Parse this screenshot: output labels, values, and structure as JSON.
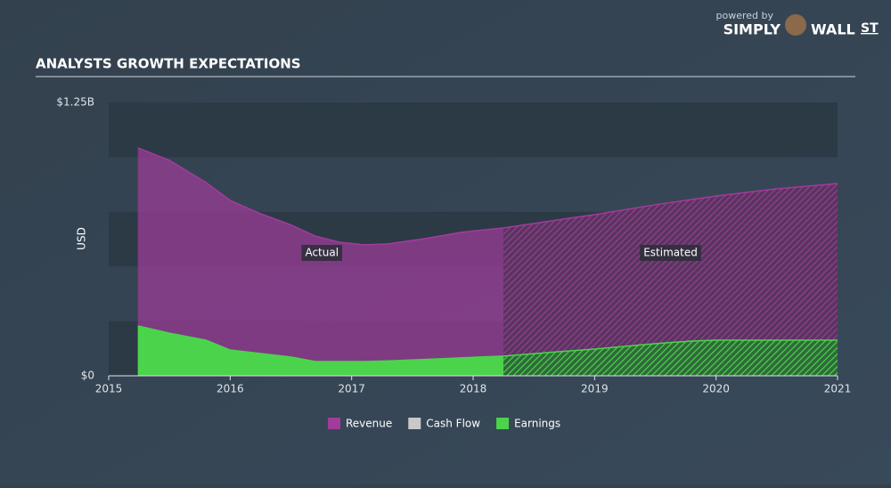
{
  "brand": {
    "powered_by": "powered by",
    "simply": "SIMPLY",
    "wall": "WALL",
    "st": "ST"
  },
  "chart_data": {
    "type": "area",
    "title": "ANALYSTS GROWTH EXPECTATIONS",
    "y_label": "USD",
    "x": [
      2015.24,
      2015.5,
      2015.8,
      2016.0,
      2016.25,
      2016.5,
      2016.7,
      2016.9,
      2017.1,
      2017.3,
      2017.6,
      2017.9,
      2018.1,
      2018.25,
      2018.7,
      2019.0,
      2019.5,
      2019.8,
      2020.0,
      2020.5,
      2021.0
    ],
    "series": [
      {
        "name": "Revenue",
        "color": "#a13c9b",
        "values": [
          1.042,
          0.985,
          0.884,
          0.802,
          0.741,
          0.69,
          0.639,
          0.611,
          0.599,
          0.603,
          0.627,
          0.656,
          0.668,
          0.676,
          0.713,
          0.737,
          0.782,
          0.806,
          0.822,
          0.855,
          0.879
        ]
      },
      {
        "name": "Cash Flow",
        "color": "#c8c8c8",
        "values": [
          null,
          null,
          null,
          null,
          null,
          null,
          null,
          null,
          null,
          null,
          null,
          null,
          null,
          null,
          null,
          null,
          null,
          null,
          null,
          null,
          null
        ]
      },
      {
        "name": "Earnings",
        "color": "#4cd34c",
        "values": [
          0.228,
          0.195,
          0.163,
          0.118,
          0.102,
          0.086,
          0.065,
          0.065,
          0.065,
          0.068,
          0.075,
          0.082,
          0.087,
          0.09,
          0.11,
          0.122,
          0.147,
          0.159,
          0.163,
          0.163,
          0.163
        ]
      }
    ],
    "forecast_start": 2018.25,
    "annotations": [
      "Actual",
      "Estimated"
    ],
    "xlim": [
      2015,
      2021
    ],
    "xticks": [
      2015,
      2016,
      2017,
      2018,
      2019,
      2020,
      2021
    ],
    "ylim": [
      0,
      1.25
    ],
    "yticks": [
      {
        "value": 0,
        "label": "$0"
      },
      {
        "value": 1.25,
        "label": "$1.25B"
      }
    ]
  }
}
